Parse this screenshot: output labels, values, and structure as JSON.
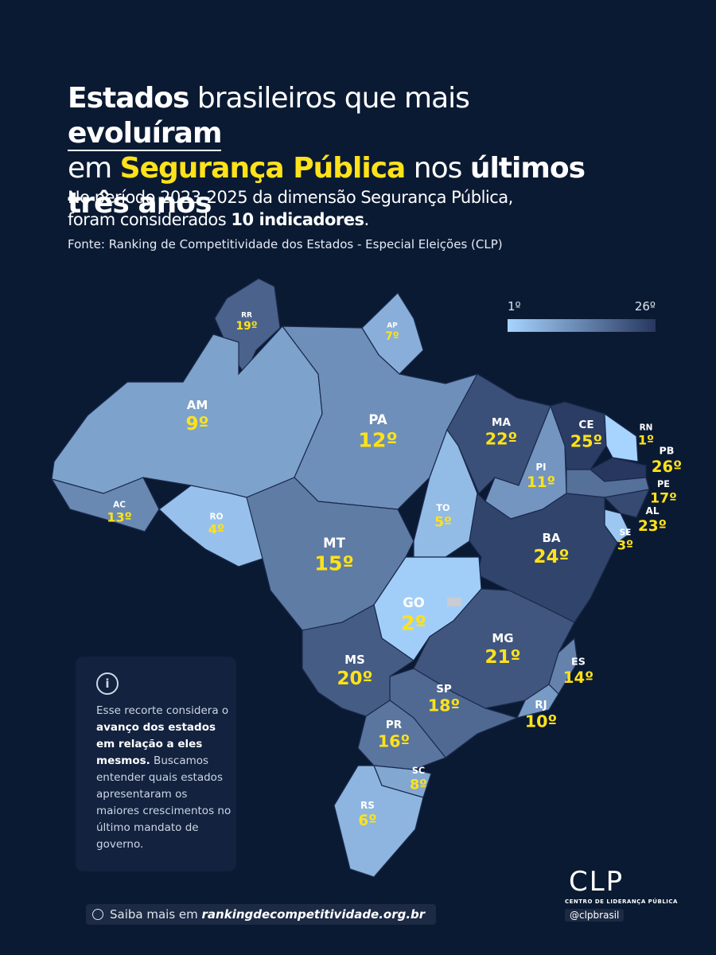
{
  "header": {
    "title_parts": [
      {
        "text": "Estados",
        "style": "bold"
      },
      {
        "text": " brasileiros que mais ",
        "style": "normal"
      },
      {
        "text": "evoluíram",
        "style": "underline"
      },
      {
        "text": "em ",
        "style": "normal"
      },
      {
        "text": "Segurança Pública",
        "style": "highlight"
      },
      {
        "text": " nos ",
        "style": "normal"
      },
      {
        "text": "últimos",
        "style": "bold"
      },
      {
        "text": "três anos",
        "style": "bold"
      }
    ],
    "subtitle_parts": [
      {
        "text": "No período 2023-2025 da dimensão Segurança Pública,",
        "style": "normal"
      },
      {
        "text": "foram considerados ",
        "style": "normal"
      },
      {
        "text": "10 indicadores",
        "style": "bold"
      },
      {
        "text": ".",
        "style": "normal"
      }
    ],
    "source": "Fonte: Ranking de Competitividade dos Estados - Especial Eleições (CLP)"
  },
  "legend": {
    "min": 1,
    "max": 26,
    "min_label": "1º",
    "max_label": "26º",
    "min_color": "#a6d4ff",
    "max_color": "#27375f"
  },
  "states": [
    {
      "code": "RR",
      "rank": 19,
      "rank_label": "19º"
    },
    {
      "code": "AP",
      "rank": 7,
      "rank_label": "7º"
    },
    {
      "code": "AM",
      "rank": 9,
      "rank_label": "9º"
    },
    {
      "code": "AC",
      "rank": 13,
      "rank_label": "13º"
    },
    {
      "code": "RO",
      "rank": 4,
      "rank_label": "4º"
    },
    {
      "code": "PA",
      "rank": 12,
      "rank_label": "12º"
    },
    {
      "code": "MT",
      "rank": 15,
      "rank_label": "15º"
    },
    {
      "code": "TO",
      "rank": 5,
      "rank_label": "5º"
    },
    {
      "code": "MA",
      "rank": 22,
      "rank_label": "22º"
    },
    {
      "code": "PI",
      "rank": 11,
      "rank_label": "11º"
    },
    {
      "code": "CE",
      "rank": 25,
      "rank_label": "25º"
    },
    {
      "code": "RN",
      "rank": 1,
      "rank_label": "1º"
    },
    {
      "code": "PB",
      "rank": 26,
      "rank_label": "26º"
    },
    {
      "code": "PE",
      "rank": 17,
      "rank_label": "17º"
    },
    {
      "code": "AL",
      "rank": 23,
      "rank_label": "23º"
    },
    {
      "code": "SE",
      "rank": 3,
      "rank_label": "3º"
    },
    {
      "code": "BA",
      "rank": 24,
      "rank_label": "24º"
    },
    {
      "code": "GO",
      "rank": 2,
      "rank_label": "2º"
    },
    {
      "code": "MG",
      "rank": 21,
      "rank_label": "21º"
    },
    {
      "code": "ES",
      "rank": 14,
      "rank_label": "14º"
    },
    {
      "code": "RJ",
      "rank": 10,
      "rank_label": "10º"
    },
    {
      "code": "SP",
      "rank": 18,
      "rank_label": "18º"
    },
    {
      "code": "MS",
      "rank": 20,
      "rank_label": "20º"
    },
    {
      "code": "PR",
      "rank": 16,
      "rank_label": "16º"
    },
    {
      "code": "SC",
      "rank": 8,
      "rank_label": "8º"
    },
    {
      "code": "RS",
      "rank": 6,
      "rank_label": "6º"
    }
  ],
  "info_box": {
    "icon": "i",
    "parts": [
      {
        "text": "Esse recorte considera o ",
        "style": "normal"
      },
      {
        "text": "avanço dos estados em relação a eles mesmos.",
        "style": "bold"
      },
      {
        "text": " Buscamos entender quais estados apresentaram os maiores crescimentos no último mandato de governo.",
        "style": "normal"
      }
    ]
  },
  "footer": {
    "link_prefix": "Saiba mais em ",
    "link": "rankingdecompetitividade.org.br",
    "logo": "CLP",
    "logo_subtitle": "CENTRO DE LIDERANÇA PÚBLICA",
    "handle": "@clpbrasil"
  }
}
